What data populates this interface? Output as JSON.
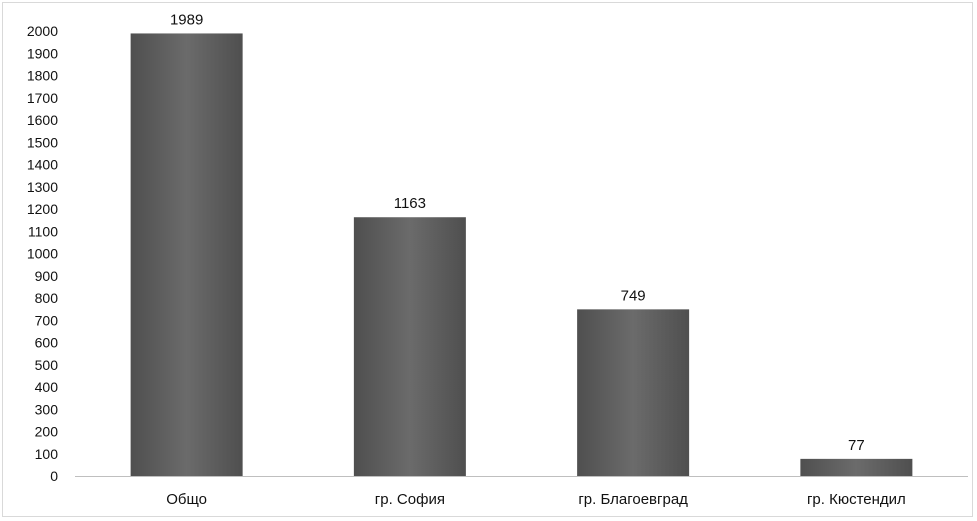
{
  "chart_data": {
    "type": "bar",
    "categories": [
      "Общо",
      "гр. София",
      "гр. Благоевград",
      "гр. Кюстендил"
    ],
    "values": [
      1989,
      1163,
      749,
      77
    ],
    "ylim": [
      0,
      2000
    ],
    "ytick_step": 100,
    "grid": false,
    "legend": "none",
    "bar_color": "#6b6b6b",
    "bar_color_dark": "#4f4f4f",
    "axis_color": "#bfbfbf"
  }
}
